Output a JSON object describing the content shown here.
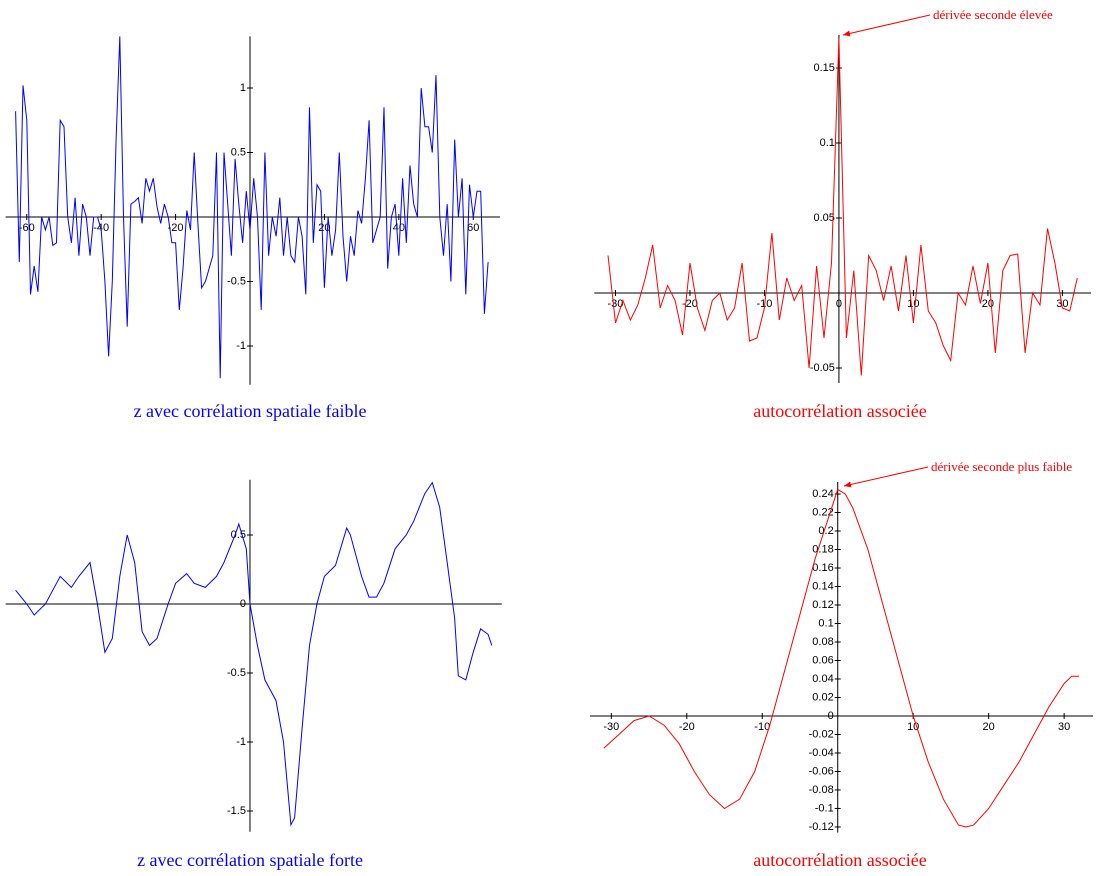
{
  "chart_data": [
    {
      "type": "line",
      "title": "z avec corrélation spatiale faible",
      "color": "#0000ff",
      "xlim": [
        -63,
        64.5
      ],
      "ylim": [
        -1.3,
        1.4
      ],
      "xticks": [
        -60,
        -40,
        -20,
        20,
        40,
        60
      ],
      "yticks": [
        -1,
        -0.5,
        0.5,
        1
      ],
      "x": [
        -63,
        -62,
        -61,
        -60,
        -59,
        -58,
        -57,
        -56,
        -55,
        -54,
        -53,
        -52,
        -51,
        -50,
        -49,
        -48,
        -47,
        -46,
        -45,
        -44,
        -43,
        -42,
        -41,
        -40,
        -39,
        -38,
        -37,
        -36,
        -35,
        -34,
        -33,
        -32,
        -31,
        -30,
        -29,
        -28,
        -27,
        -26,
        -25,
        -24,
        -23,
        -22,
        -21,
        -20,
        -19,
        -18,
        -17,
        -16,
        -15,
        -14,
        -13,
        -12,
        -11,
        -10,
        -9,
        -8,
        -7,
        -6,
        -5,
        -4,
        -3,
        -2,
        -1,
        0,
        1,
        2,
        3,
        4,
        5,
        6,
        7,
        8,
        9,
        10,
        11,
        12,
        13,
        14,
        15,
        16,
        17,
        18,
        19,
        20,
        21,
        22,
        23,
        24,
        25,
        26,
        27,
        28,
        29,
        30,
        31,
        32,
        33,
        34,
        35,
        36,
        37,
        38,
        39,
        40,
        41,
        42,
        43,
        44,
        45,
        46,
        47,
        48,
        49,
        50,
        51,
        52,
        53,
        54,
        55,
        56,
        57,
        58,
        59,
        60,
        61,
        62,
        63,
        64
      ],
      "values": [
        0.82,
        -0.35,
        1.02,
        0.75,
        -0.6,
        -0.38,
        -0.58,
        0.0,
        -0.1,
        0.0,
        -0.22,
        -0.2,
        0.75,
        0.7,
        0.0,
        -0.2,
        0.15,
        -0.3,
        0.1,
        0.0,
        -0.3,
        0.0,
        0.0,
        -0.1,
        -0.5,
        -1.08,
        -0.5,
        0.6,
        1.4,
        0.0,
        -0.85,
        0.1,
        0.12,
        0.15,
        -0.05,
        0.3,
        0.2,
        0.3,
        0.08,
        -0.05,
        0.1,
        0.0,
        -0.2,
        -0.2,
        -0.72,
        -0.4,
        0.05,
        -0.1,
        0.5,
        -0.05,
        -0.55,
        -0.5,
        -0.4,
        -0.3,
        0.5,
        -1.25,
        0.5,
        0.1,
        -0.3,
        0.45,
        0.1,
        -0.2,
        0.2,
        -0.1,
        0.3,
        0.0,
        -0.72,
        0.5,
        -0.3,
        0.0,
        -0.15,
        0.15,
        -0.3,
        0.0,
        -0.3,
        -0.35,
        0.0,
        -0.15,
        -0.6,
        0.85,
        -0.2,
        0.25,
        0.2,
        -0.55,
        0.0,
        -0.3,
        -0.1,
        0.5,
        -0.15,
        -0.5,
        -0.15,
        -0.3,
        0.05,
        -0.05,
        0.3,
        0.75,
        -0.2,
        -0.1,
        0.0,
        0.85,
        -0.4,
        0.0,
        0.1,
        -0.3,
        0.3,
        -0.2,
        0.4,
        0.1,
        0.0,
        1.0,
        0.7,
        0.7,
        0.5,
        1.1,
        0.0,
        -0.3,
        0.1,
        -0.5,
        0.6,
        0.0,
        0.3,
        -0.6,
        0.25,
        0.0,
        0.2,
        0.2,
        -0.75,
        -0.35
      ]
    },
    {
      "type": "line",
      "title": "autocorrélation associée",
      "color": "#ff0000",
      "annotation": "dérivée seconde élevée",
      "xlim": [
        -31.5,
        32.5
      ],
      "ylim": [
        -0.06,
        0.172
      ],
      "xticks": [
        -30,
        -20,
        -10,
        0,
        10,
        20,
        30
      ],
      "yticks": [
        -0.05,
        0.05,
        0.1,
        0.15
      ],
      "x": [
        -31,
        -30,
        -29,
        -28,
        -27,
        -26,
        -25,
        -24,
        -23,
        -22,
        -21,
        -20,
        -19,
        -18,
        -17,
        -16,
        -15,
        -14,
        -13,
        -12,
        -11,
        -10,
        -9,
        -8,
        -7,
        -6,
        -5,
        -4,
        -3,
        -2,
        -1,
        0,
        1,
        2,
        3,
        4,
        5,
        6,
        7,
        8,
        9,
        10,
        11,
        12,
        13,
        14,
        15,
        16,
        17,
        18,
        19,
        20,
        21,
        22,
        23,
        24,
        25,
        26,
        27,
        28,
        29,
        30,
        31,
        32
      ],
      "values": [
        0.025,
        -0.02,
        -0.005,
        -0.018,
        -0.008,
        0.01,
        0.032,
        -0.01,
        0.005,
        -0.005,
        -0.028,
        0.02,
        -0.01,
        -0.025,
        -0.005,
        0.0,
        -0.018,
        -0.01,
        0.02,
        -0.032,
        -0.03,
        -0.01,
        0.04,
        -0.018,
        0.01,
        -0.005,
        0.005,
        -0.05,
        0.018,
        -0.03,
        0.02,
        0.17,
        -0.03,
        0.015,
        -0.055,
        0.025,
        0.015,
        -0.005,
        0.018,
        -0.012,
        0.025,
        -0.02,
        0.032,
        -0.012,
        -0.02,
        -0.035,
        -0.045,
        0.0,
        -0.008,
        0.018,
        -0.007,
        0.02,
        -0.04,
        0.015,
        0.025,
        0.026,
        -0.04,
        0.0,
        -0.008,
        0.043,
        0.02,
        -0.01,
        -0.012,
        0.01
      ]
    },
    {
      "type": "line",
      "title": "z avec corrélation spatiale forte",
      "color": "#0000ff",
      "xlim": [
        -63,
        65
      ],
      "ylim": [
        -1.65,
        0.9
      ],
      "yticks": [
        -1.5,
        -1,
        -0.5,
        0,
        0.5
      ],
      "x": [
        -63,
        -60,
        -58,
        -55,
        -52,
        -51,
        -48,
        -46,
        -43,
        -41,
        -39,
        -37,
        -35,
        -33,
        -31,
        -29,
        -27,
        -25,
        -22,
        -20,
        -17,
        -15,
        -12,
        -9,
        -7,
        -4,
        -3,
        -1,
        0,
        2,
        4,
        7,
        9,
        11,
        12,
        14,
        16,
        18,
        20,
        23,
        26,
        27,
        30,
        32,
        34,
        36,
        39,
        42,
        44,
        47,
        49,
        51,
        53,
        55,
        56,
        58,
        60,
        62,
        64,
        65
      ],
      "values": [
        0.1,
        0.0,
        -0.08,
        0.0,
        0.15,
        0.2,
        0.12,
        0.2,
        0.3,
        0.0,
        -0.35,
        -0.25,
        0.2,
        0.5,
        0.3,
        -0.2,
        -0.3,
        -0.25,
        0.0,
        0.15,
        0.22,
        0.15,
        0.12,
        0.2,
        0.3,
        0.5,
        0.58,
        0.4,
        0.0,
        -0.3,
        -0.55,
        -0.7,
        -1.0,
        -1.6,
        -1.55,
        -0.9,
        -0.3,
        0.0,
        0.2,
        0.28,
        0.55,
        0.5,
        0.2,
        0.05,
        0.05,
        0.15,
        0.4,
        0.5,
        0.6,
        0.8,
        0.88,
        0.7,
        0.3,
        -0.1,
        -0.52,
        -0.55,
        -0.35,
        -0.18,
        -0.22,
        -0.3
      ]
    },
    {
      "type": "line",
      "title": "autocorrélation associée",
      "color": "#ff0000",
      "annotation": "dérivée seconde plus faible",
      "xlim": [
        -31.5,
        32.5
      ],
      "ylim": [
        -0.126,
        0.253
      ],
      "xticks": [
        -30,
        -20,
        -10,
        10,
        20,
        30
      ],
      "yticks": [
        -0.12,
        -0.1,
        -0.08,
        -0.06,
        -0.04,
        -0.02,
        0,
        0.02,
        0.04,
        0.06,
        0.08,
        0.1,
        0.12,
        0.14,
        0.16,
        0.18,
        0.2,
        0.22,
        0.24
      ],
      "x": [
        -31,
        -29,
        -27,
        -25,
        -23,
        -21,
        -19,
        -17,
        -15,
        -13,
        -11,
        -9,
        -7,
        -5,
        -3,
        -1,
        0,
        1,
        2,
        4,
        6,
        8,
        10,
        12,
        14,
        16,
        17,
        18,
        20,
        22,
        24,
        26,
        28,
        30,
        31,
        32
      ],
      "values": [
        -0.035,
        -0.02,
        -0.005,
        0.0,
        -0.01,
        -0.03,
        -0.06,
        -0.085,
        -0.1,
        -0.09,
        -0.06,
        -0.01,
        0.05,
        0.11,
        0.17,
        0.22,
        0.245,
        0.24,
        0.225,
        0.18,
        0.12,
        0.06,
        0.0,
        -0.05,
        -0.09,
        -0.118,
        -0.12,
        -0.118,
        -0.1,
        -0.075,
        -0.05,
        -0.02,
        0.01,
        0.035,
        0.043,
        0.043
      ]
    }
  ]
}
